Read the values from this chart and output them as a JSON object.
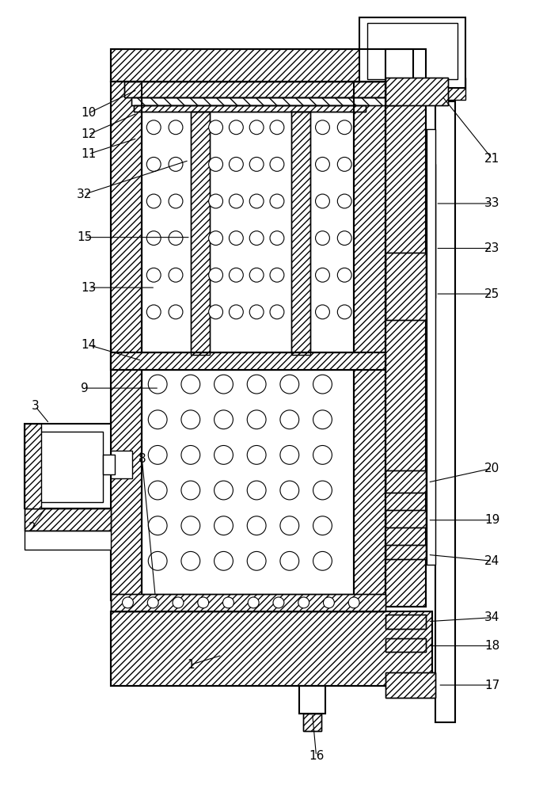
{
  "fig_width": 6.86,
  "fig_height": 10.0,
  "bg_color": "#ffffff",
  "line_color": "#000000"
}
